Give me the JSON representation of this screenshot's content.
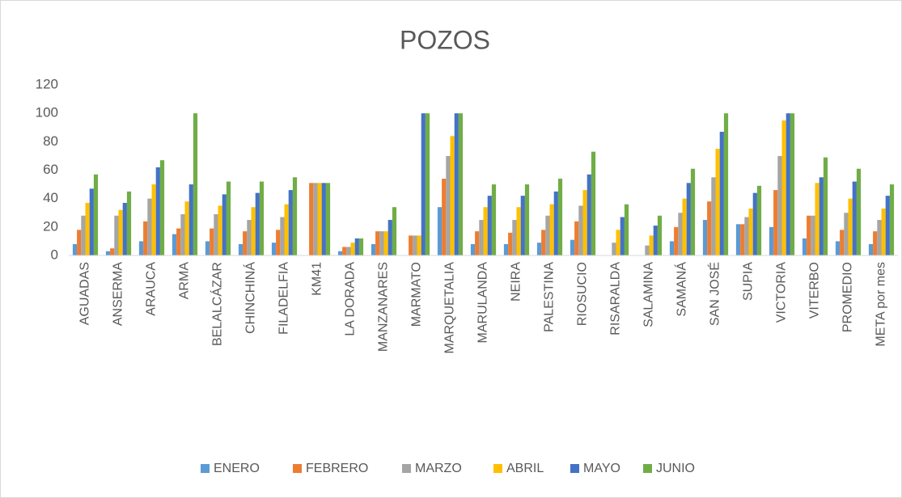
{
  "chart_data": {
    "type": "bar",
    "title": "POZOS",
    "categories": [
      "AGUADAS",
      "ANSERMA",
      "ARAUCA",
      "ARMA",
      "BELALCÁZAR",
      "CHINCHINÁ",
      "FILADELFIA",
      "KM41",
      "LA DORADA",
      "MANZANARES",
      "MARMATO",
      "MARQUETALIA",
      "MARULANDA",
      "NEIRA",
      "PALESTINA",
      "RIOSUCIO",
      "RISARALDA",
      "SALAMINA",
      "SAMANÁ",
      "SAN JOSÉ",
      "SUPIA",
      "VICTORIA",
      "VITERBO",
      "PROMEDIO",
      "META por mes"
    ],
    "series": [
      {
        "name": "ENERO",
        "color": "#5b9bd5",
        "values": [
          8,
          3,
          10,
          15,
          10,
          8,
          9,
          0,
          3,
          8,
          0,
          34,
          8,
          8,
          9,
          11,
          0,
          0,
          10,
          25,
          22,
          20,
          12,
          10,
          8
        ]
      },
      {
        "name": "FEBRERO",
        "color": "#ed7d31",
        "values": [
          18,
          5,
          24,
          19,
          19,
          17,
          18,
          51,
          6,
          17,
          14,
          54,
          17,
          16,
          18,
          24,
          0,
          0,
          20,
          38,
          22,
          46,
          28,
          18,
          17
        ]
      },
      {
        "name": "MARZO",
        "color": "#a5a5a5",
        "values": [
          28,
          28,
          40,
          29,
          29,
          25,
          27,
          51,
          6,
          17,
          14,
          70,
          25,
          25,
          28,
          35,
          9,
          7,
          30,
          55,
          27,
          70,
          28,
          30,
          25
        ]
      },
      {
        "name": "ABRIL",
        "color": "#ffc000",
        "values": [
          37,
          32,
          50,
          38,
          35,
          34,
          36,
          51,
          9,
          17,
          14,
          84,
          34,
          34,
          36,
          46,
          18,
          14,
          40,
          75,
          33,
          95,
          51,
          40,
          33
        ]
      },
      {
        "name": "MAYO",
        "color": "#4472c4",
        "values": [
          47,
          37,
          62,
          50,
          43,
          44,
          46,
          51,
          12,
          25,
          100,
          100,
          42,
          42,
          45,
          57,
          27,
          21,
          51,
          87,
          44,
          100,
          55,
          52,
          42
        ]
      },
      {
        "name": "JUNIO",
        "color": "#70ad47",
        "values": [
          57,
          45,
          67,
          100,
          52,
          52,
          55,
          51,
          12,
          34,
          100,
          100,
          50,
          50,
          54,
          73,
          36,
          28,
          61,
          100,
          49,
          100,
          69,
          61,
          50
        ]
      }
    ],
    "ylim": [
      0,
      120
    ],
    "yticks": [
      0,
      20,
      40,
      60,
      80,
      100,
      120
    ],
    "grid": false,
    "legend": "bottom"
  }
}
